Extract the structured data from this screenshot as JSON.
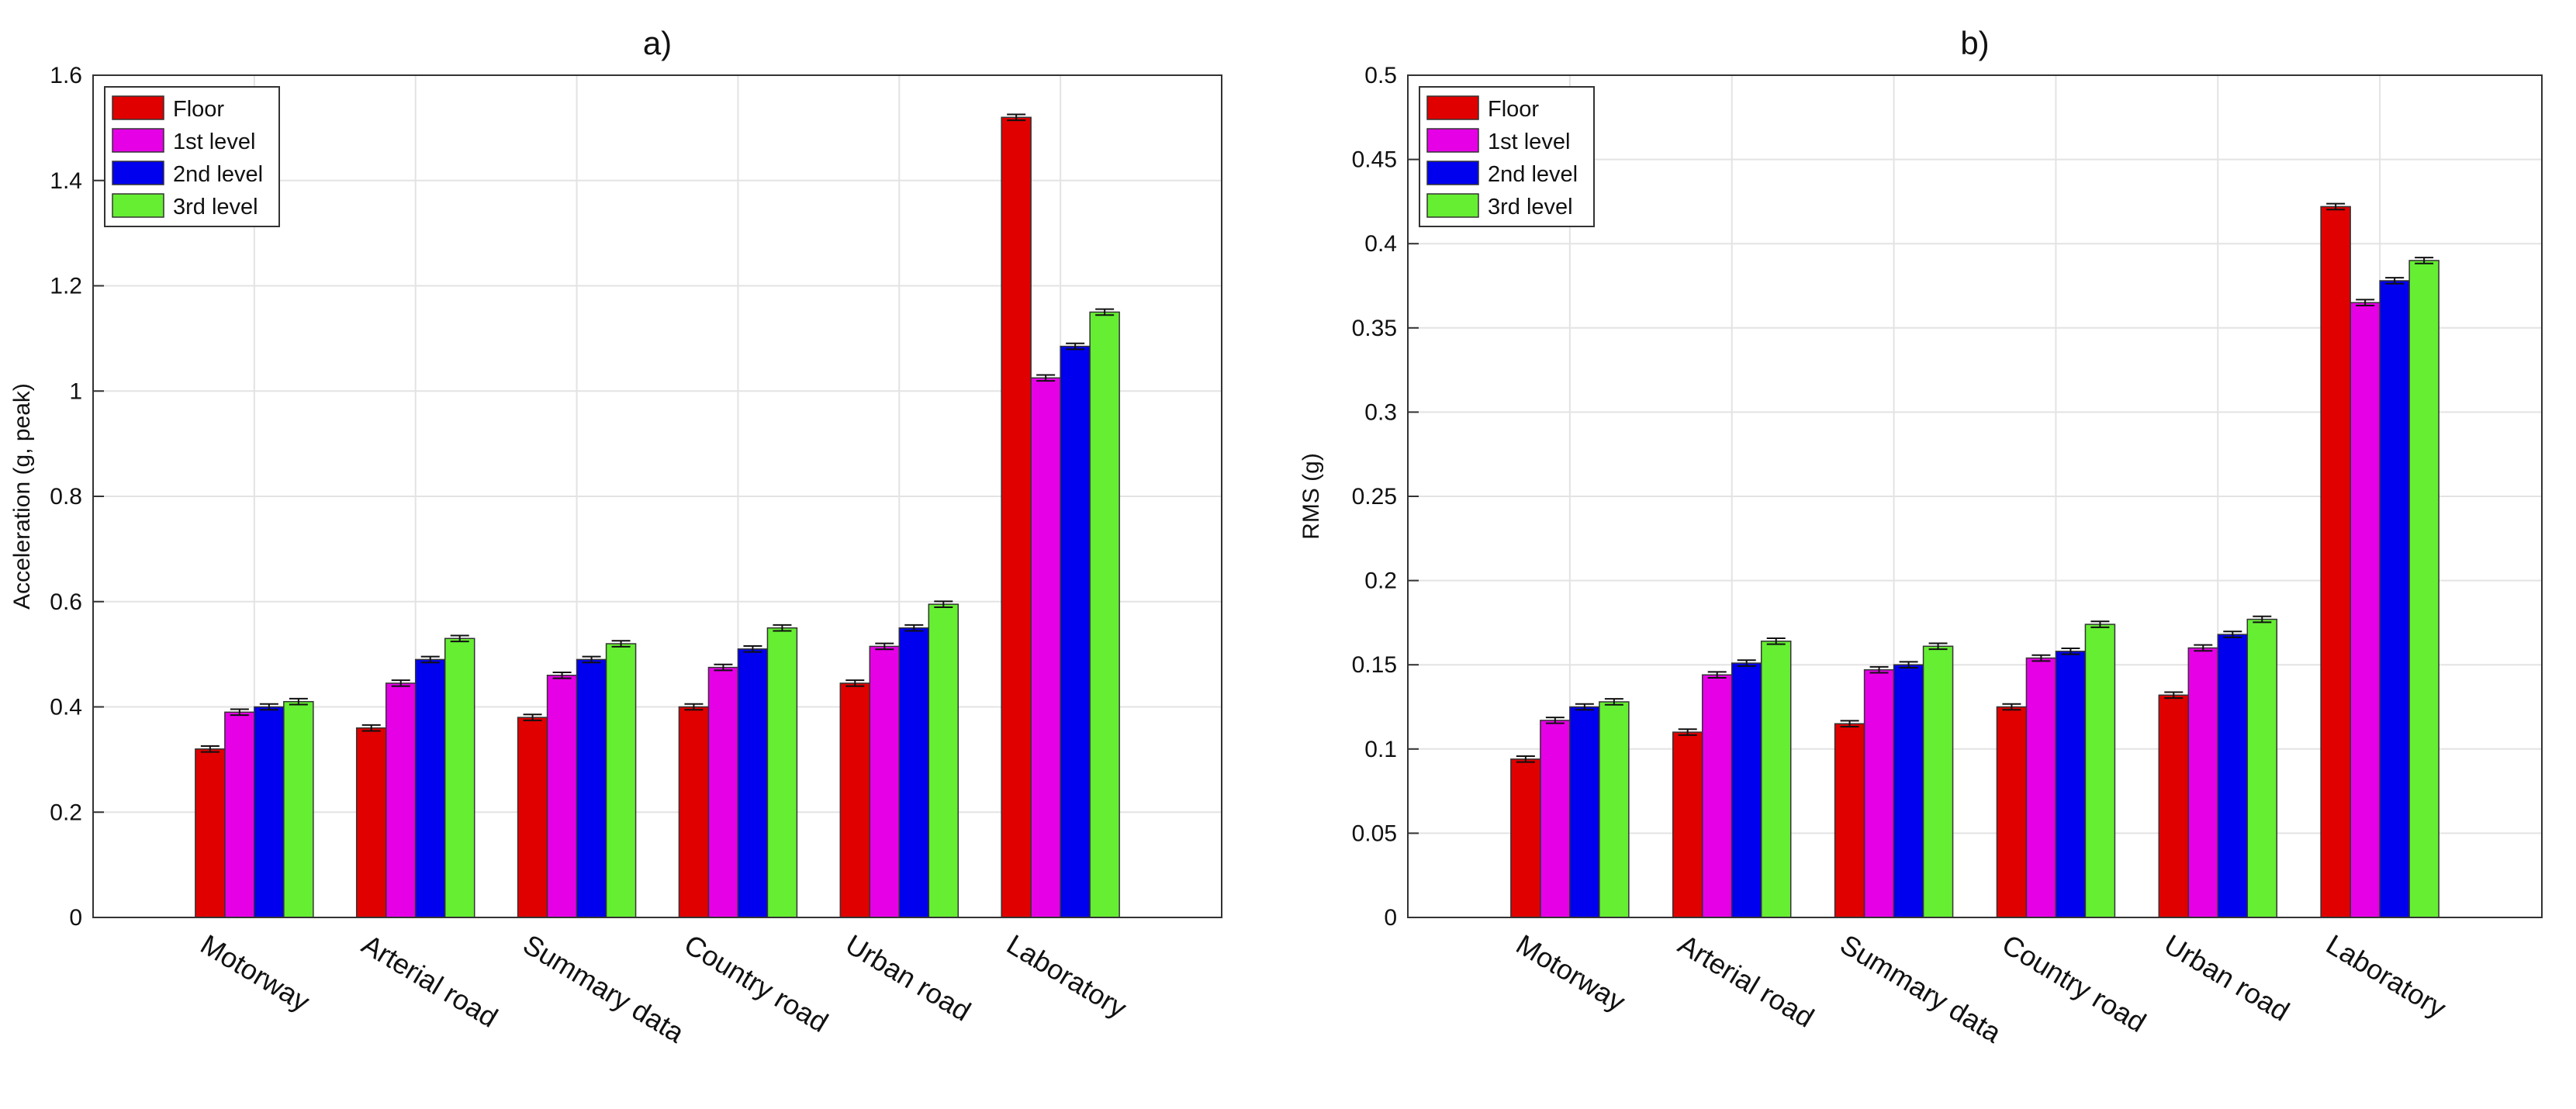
{
  "chart_data": [
    {
      "type": "bar",
      "title": "a)",
      "xlabel": "",
      "ylabel": "Acceleration (g, peak)",
      "ylim": [
        0,
        1.6
      ],
      "yticks": [
        0,
        0.2,
        0.4,
        0.6,
        0.8,
        1,
        1.2,
        1.4,
        1.6
      ],
      "ytick_labels": [
        "0",
        "0.2",
        "0.4",
        "0.6",
        "0.8",
        "1",
        "1.2",
        "1.4",
        "1.6"
      ],
      "grid": true,
      "legend_position": "top-left",
      "categories": [
        "Motorway",
        "Arterial road",
        "Summary data",
        "Country road",
        "Urban road",
        "Laboratory"
      ],
      "series": [
        {
          "name": "Floor",
          "color": "#e00000",
          "values": [
            0.32,
            0.36,
            0.38,
            0.4,
            0.445,
            1.52
          ]
        },
        {
          "name": "1st level",
          "color": "#e600e6",
          "values": [
            0.39,
            0.445,
            0.46,
            0.475,
            0.515,
            1.025
          ]
        },
        {
          "name": "2nd level",
          "color": "#0000ee",
          "values": [
            0.4,
            0.49,
            0.49,
            0.51,
            0.55,
            1.085
          ]
        },
        {
          "name": "3rd level",
          "color": "#66ee33",
          "values": [
            0.41,
            0.53,
            0.52,
            0.55,
            0.595,
            1.15
          ]
        }
      ]
    },
    {
      "type": "bar",
      "title": "b)",
      "xlabel": "",
      "ylabel": "RMS (g)",
      "ylim": [
        0,
        0.5
      ],
      "yticks": [
        0,
        0.05,
        0.1,
        0.15,
        0.2,
        0.25,
        0.3,
        0.35,
        0.4,
        0.45,
        0.5
      ],
      "ytick_labels": [
        "0",
        "0.05",
        "0.1",
        "0.15",
        "0.2",
        "0.25",
        "0.3",
        "0.35",
        "0.4",
        "0.45",
        "0.5"
      ],
      "grid": true,
      "legend_position": "top-left",
      "categories": [
        "Motorway",
        "Arterial road",
        "Summary data",
        "Country road",
        "Urban road",
        "Laboratory"
      ],
      "series": [
        {
          "name": "Floor",
          "color": "#e00000",
          "values": [
            0.094,
            0.11,
            0.115,
            0.125,
            0.132,
            0.422
          ]
        },
        {
          "name": "1st level",
          "color": "#e600e6",
          "values": [
            0.117,
            0.144,
            0.147,
            0.154,
            0.16,
            0.365
          ]
        },
        {
          "name": "2nd level",
          "color": "#0000ee",
          "values": [
            0.125,
            0.151,
            0.15,
            0.158,
            0.168,
            0.378
          ]
        },
        {
          "name": "3rd level",
          "color": "#66ee33",
          "values": [
            0.128,
            0.164,
            0.161,
            0.174,
            0.177,
            0.39
          ]
        }
      ]
    }
  ]
}
